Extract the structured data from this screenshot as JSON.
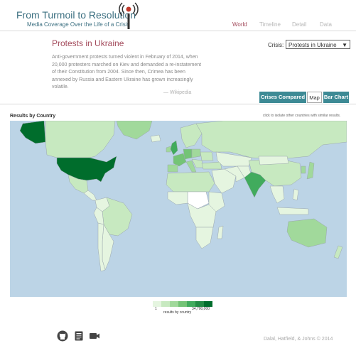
{
  "header": {
    "title": "From Turmoil to Resolution",
    "subtitle": "Media Coverage Over the Life of a Crisis",
    "logo_icon": "signal-tower-icon"
  },
  "nav": [
    {
      "label": "World",
      "active": true
    },
    {
      "label": "Timeline",
      "active": false
    },
    {
      "label": "Detail",
      "active": false
    },
    {
      "label": "Data",
      "active": false
    }
  ],
  "crisis": {
    "title": "Protests in Ukraine",
    "description": "Anti-government protests turned violent in February of 2014, when 20,000 protesters marched on Kiev and demanded a re-instatement of their Constitution from 2004. Since then, Crimea has been annexed by Russia and Eastern Ukraine has grown increasingly volatile.",
    "citation": "— Wikipedia",
    "select_label": "Crisis:",
    "selected": "Protests in Ukraine"
  },
  "tabs": [
    {
      "label": "Crises Compared",
      "style": "dark"
    },
    {
      "label": "Map",
      "style": "light"
    },
    {
      "label": "Bar Chart",
      "style": "dark"
    }
  ],
  "map": {
    "results_label": "Results by Country",
    "hint": "click to isolate other countries with similar results.",
    "ocean_color": "#bcd4e6",
    "no_data_color": "#ffffff"
  },
  "legend": {
    "min": "1",
    "max": "34,700,000",
    "caption": "results by country",
    "colors": [
      "#e5f5e0",
      "#c7e9c0",
      "#a1d99b",
      "#74c476",
      "#41ab5d",
      "#238b45",
      "#006d2c"
    ]
  },
  "footer": {
    "icons": [
      "github-icon",
      "document-icon",
      "video-camera-icon"
    ],
    "credits": "Dalal, Hatfield, & Johns © 2014"
  }
}
